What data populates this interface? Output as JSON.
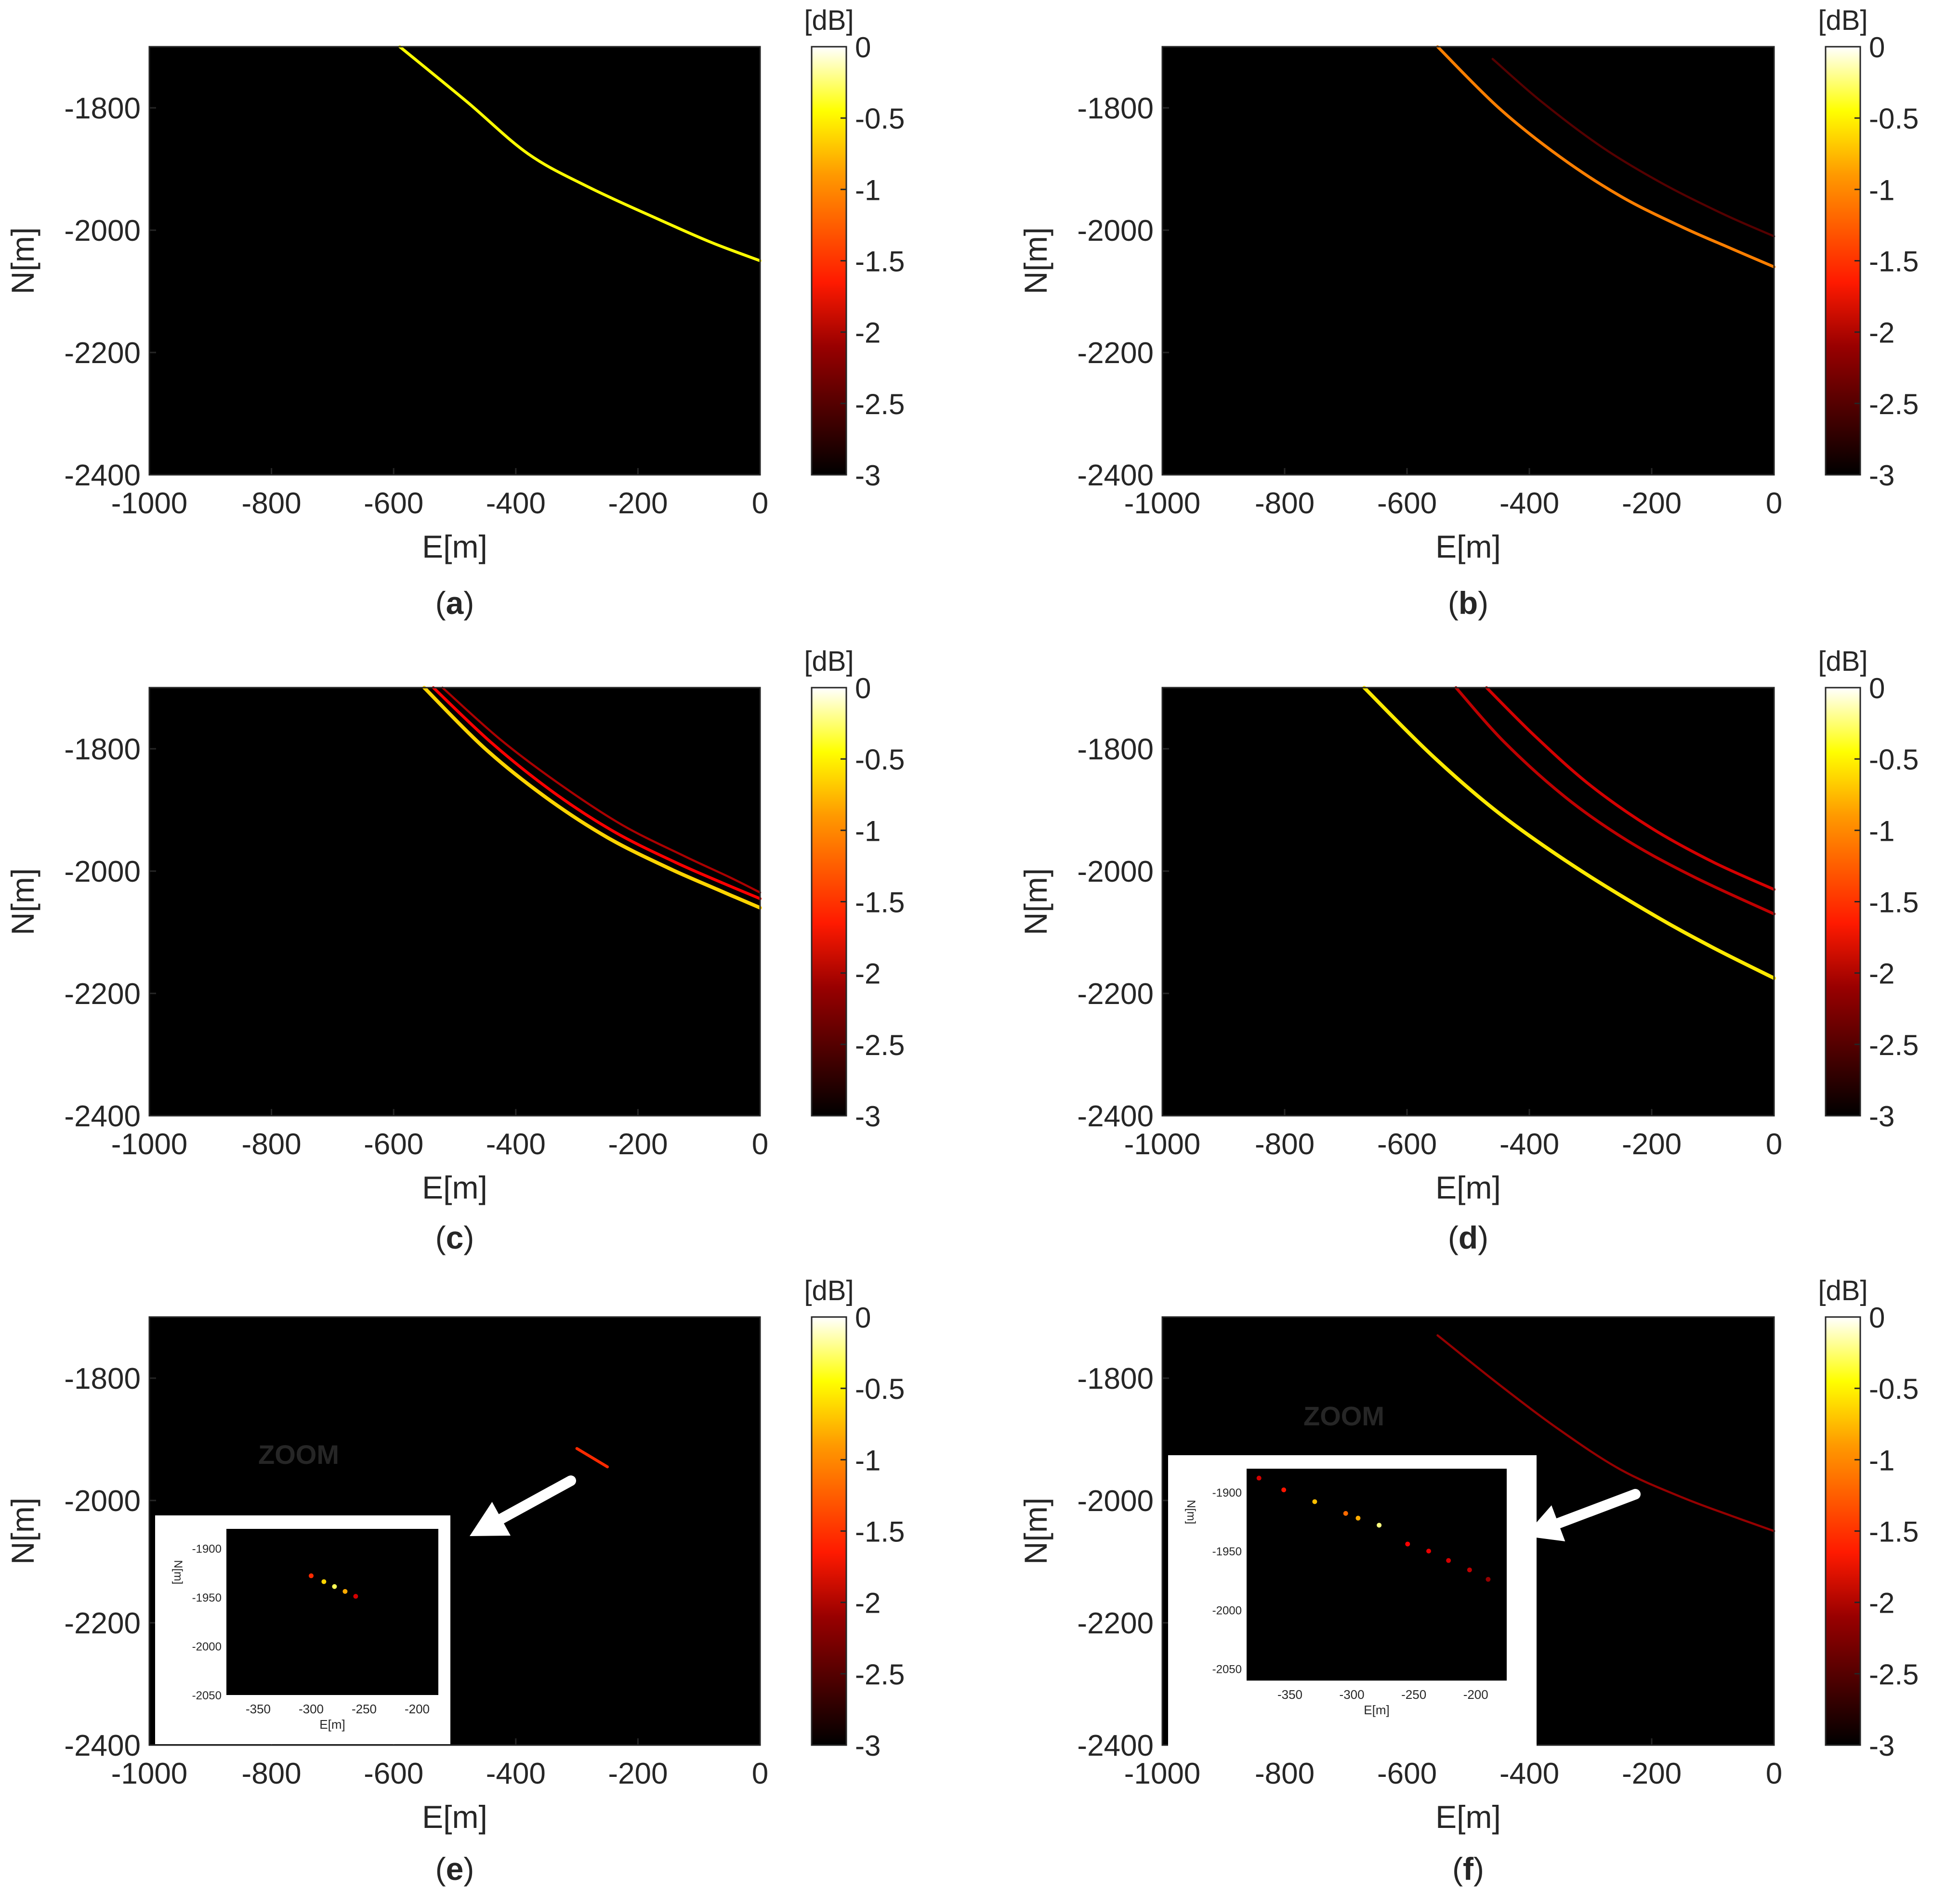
{
  "figure": {
    "panel_labels": [
      "a",
      "b",
      "c",
      "d",
      "e",
      "f"
    ]
  },
  "chart_data": [
    {
      "panel": "a",
      "type": "heatmap",
      "xlabel": "E[m]",
      "ylabel": "N[m]",
      "xlim": [
        -1000,
        0
      ],
      "ylim": [
        -2400,
        -1700
      ],
      "xticks": [
        "-1000",
        "-800",
        "-600",
        "-400",
        "-200",
        "0"
      ],
      "yticks": [
        "-1800",
        "-2000",
        "-2200",
        "-2400"
      ],
      "colorbar": {
        "title": "[dB]",
        "range": [
          -3,
          0
        ],
        "ticks": [
          "0",
          "-0.5",
          "-1",
          "-1.5",
          "-2",
          "-2.5",
          "-3"
        ]
      },
      "arcs": [
        {
          "level": -0.6,
          "width": 2,
          "points": [
            [
              -590,
              -1700
            ],
            [
              -480,
              -1790
            ],
            [
              -380,
              -1875
            ],
            [
              -280,
              -1930
            ],
            [
              -160,
              -1985
            ],
            [
              -80,
              -2020
            ],
            [
              0,
              -2050
            ]
          ]
        }
      ]
    },
    {
      "panel": "b",
      "type": "heatmap",
      "xlabel": "E[m]",
      "ylabel": "N[m]",
      "xlim": [
        -1000,
        0
      ],
      "ylim": [
        -2400,
        -1700
      ],
      "xticks": [
        "-1000",
        "-800",
        "-600",
        "-400",
        "-200",
        "0"
      ],
      "yticks": [
        "-1800",
        "-2000",
        "-2200",
        "-2400"
      ],
      "colorbar": {
        "title": "[dB]",
        "range": [
          -3,
          0
        ],
        "ticks": [
          "0",
          "-0.5",
          "-1",
          "-1.5",
          "-2",
          "-2.5",
          "-3"
        ]
      },
      "arcs": [
        {
          "level": -1.2,
          "width": 2,
          "points": [
            [
              -550,
              -1700
            ],
            [
              -450,
              -1800
            ],
            [
              -350,
              -1880
            ],
            [
              -250,
              -1945
            ],
            [
              -150,
              -1995
            ],
            [
              -70,
              -2030
            ],
            [
              0,
              -2060
            ]
          ]
        },
        {
          "level": -2.6,
          "width": 1.5,
          "points": [
            [
              -460,
              -1720
            ],
            [
              -380,
              -1790
            ],
            [
              -280,
              -1865
            ],
            [
              -180,
              -1925
            ],
            [
              -80,
              -1975
            ],
            [
              0,
              -2010
            ]
          ]
        }
      ]
    },
    {
      "panel": "c",
      "type": "heatmap",
      "xlabel": "E[m]",
      "ylabel": "N[m]",
      "xlim": [
        -1000,
        0
      ],
      "ylim": [
        -2400,
        -1700
      ],
      "xticks": [
        "-1000",
        "-800",
        "-600",
        "-400",
        "-200",
        "0"
      ],
      "yticks": [
        "-1800",
        "-2000",
        "-2200",
        "-2400"
      ],
      "colorbar": {
        "title": "[dB]",
        "range": [
          -3,
          0
        ],
        "ticks": [
          "0",
          "-0.5",
          "-1",
          "-1.5",
          "-2",
          "-2.5",
          "-3"
        ]
      },
      "arcs": [
        {
          "level": -0.8,
          "width": 2.5,
          "points": [
            [
              -550,
              -1700
            ],
            [
              -450,
              -1800
            ],
            [
              -350,
              -1880
            ],
            [
              -250,
              -1945
            ],
            [
              -150,
              -1995
            ],
            [
              -70,
              -2030
            ],
            [
              0,
              -2060
            ]
          ]
        },
        {
          "level": -1.8,
          "width": 2,
          "points": [
            [
              -535,
              -1700
            ],
            [
              -440,
              -1790
            ],
            [
              -340,
              -1870
            ],
            [
              -240,
              -1935
            ],
            [
              -140,
              -1985
            ],
            [
              -60,
              -2020
            ],
            [
              0,
              -2045
            ]
          ]
        },
        {
          "level": -2.2,
          "width": 1.5,
          "points": [
            [
              -520,
              -1700
            ],
            [
              -425,
              -1785
            ],
            [
              -325,
              -1860
            ],
            [
              -225,
              -1925
            ],
            [
              -125,
              -1975
            ],
            [
              -50,
              -2010
            ],
            [
              0,
              -2035
            ]
          ]
        }
      ]
    },
    {
      "panel": "d",
      "type": "heatmap",
      "xlabel": "E[m]",
      "ylabel": "N[m]",
      "xlim": [
        -1000,
        0
      ],
      "ylim": [
        -2400,
        -1700
      ],
      "xticks": [
        "-1000",
        "-800",
        "-600",
        "-400",
        "-200",
        "0"
      ],
      "yticks": [
        "-1800",
        "-2000",
        "-2200",
        "-2400"
      ],
      "colorbar": {
        "title": "[dB]",
        "range": [
          -3,
          0
        ],
        "ticks": [
          "0",
          "-0.5",
          "-1",
          "-1.5",
          "-2",
          "-2.5",
          "-3"
        ]
      },
      "arcs": [
        {
          "level": -0.7,
          "width": 2.5,
          "points": [
            [
              -670,
              -1700
            ],
            [
              -560,
              -1810
            ],
            [
              -450,
              -1905
            ],
            [
              -330,
              -1990
            ],
            [
              -200,
              -2070
            ],
            [
              -100,
              -2125
            ],
            [
              0,
              -2175
            ]
          ]
        },
        {
          "level": -2.0,
          "width": 2,
          "points": [
            [
              -470,
              -1700
            ],
            [
              -390,
              -1780
            ],
            [
              -300,
              -1860
            ],
            [
              -200,
              -1930
            ],
            [
              -100,
              -1985
            ],
            [
              0,
              -2030
            ]
          ]
        },
        {
          "level": -2.1,
          "width": 2,
          "points": [
            [
              -520,
              -1700
            ],
            [
              -440,
              -1790
            ],
            [
              -340,
              -1880
            ],
            [
              -240,
              -1950
            ],
            [
              -130,
              -2010
            ],
            [
              0,
              -2070
            ]
          ]
        }
      ]
    },
    {
      "panel": "e",
      "type": "heatmap",
      "xlabel": "E[m]",
      "ylabel": "N[m]",
      "xlim": [
        -1000,
        0
      ],
      "ylim": [
        -2400,
        -1700
      ],
      "xticks": [
        "-1000",
        "-800",
        "-600",
        "-400",
        "-200",
        "0"
      ],
      "yticks": [
        "-1800",
        "-2000",
        "-2200",
        "-2400"
      ],
      "colorbar": {
        "title": "[dB]",
        "range": [
          -3,
          0
        ],
        "ticks": [
          "0",
          "-0.5",
          "-1",
          "-1.5",
          "-2",
          "-2.5",
          "-3"
        ]
      },
      "arcs": [
        {
          "level": -1.6,
          "width": 2,
          "points": [
            [
              -300,
              -1915
            ],
            [
              -275,
              -1930
            ],
            [
              -250,
              -1945
            ]
          ]
        }
      ],
      "zoom": {
        "label": "ZOOM",
        "xlabel": "E[m]",
        "ylabel": "N[m]",
        "xlim": [
          -380,
          -180
        ],
        "ylim": [
          -2050,
          -1880
        ],
        "xticks": [
          "-350",
          "-300",
          "-250",
          "-200"
        ],
        "yticks": [
          "-1900",
          "-1950",
          "-2000",
          "-2050"
        ],
        "points": [
          [
            -300,
            -1928,
            -1.6
          ],
          [
            -288,
            -1934,
            -0.8
          ],
          [
            -278,
            -1939,
            -0.4
          ],
          [
            -268,
            -1944,
            -1.0
          ],
          [
            -258,
            -1949,
            -2.0
          ]
        ]
      }
    },
    {
      "panel": "f",
      "type": "heatmap",
      "xlabel": "E[m]",
      "ylabel": "N[m]",
      "xlim": [
        -1000,
        0
      ],
      "ylim": [
        -2400,
        -1700
      ],
      "xticks": [
        "-1000",
        "-800",
        "-600",
        "-400",
        "-200",
        "0"
      ],
      "yticks": [
        "-1800",
        "-2000",
        "-2200",
        "-2400"
      ],
      "colorbar": {
        "title": "[dB]",
        "range": [
          -3,
          0
        ],
        "ticks": [
          "0",
          "-0.5",
          "-1",
          "-1.5",
          "-2",
          "-2.5",
          "-3"
        ]
      },
      "arcs": [
        {
          "level": -2.3,
          "width": 1.5,
          "points": [
            [
              -550,
              -1730
            ],
            [
              -450,
              -1810
            ],
            [
              -350,
              -1885
            ],
            [
              -250,
              -1950
            ],
            [
              -150,
              -1995
            ],
            [
              -70,
              -2025
            ],
            [
              0,
              -2050
            ]
          ]
        }
      ],
      "zoom": {
        "label": "ZOOM",
        "xlabel": "E[m]",
        "ylabel": "N[m]",
        "xlim": [
          -385,
          -175
        ],
        "ylim": [
          -2060,
          -1880
        ],
        "xticks": [
          "-350",
          "-300",
          "-250",
          "-200"
        ],
        "yticks": [
          "-1900",
          "-1950",
          "-2000",
          "-2050"
        ],
        "points": [
          [
            -375,
            -1888,
            -2.0
          ],
          [
            -355,
            -1898,
            -1.7
          ],
          [
            -330,
            -1908,
            -0.9
          ],
          [
            -305,
            -1918,
            -1.3
          ],
          [
            -295,
            -1922,
            -1.0
          ],
          [
            -278,
            -1928,
            -0.3
          ],
          [
            -255,
            -1944,
            -1.8
          ],
          [
            -238,
            -1950,
            -1.9
          ],
          [
            -222,
            -1958,
            -2.0
          ],
          [
            -205,
            -1966,
            -2.1
          ],
          [
            -190,
            -1974,
            -2.3
          ]
        ]
      }
    }
  ]
}
